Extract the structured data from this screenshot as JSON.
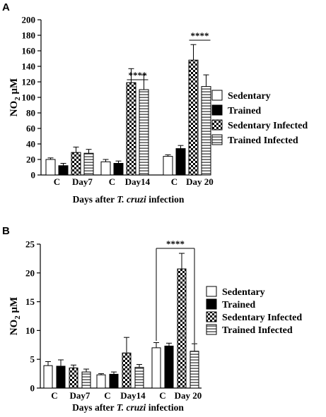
{
  "legend": [
    {
      "name": "Sedentary",
      "fill": "white"
    },
    {
      "name": "Trained",
      "fill": "black"
    },
    {
      "name": "Sedentary Infected",
      "fill": "checker"
    },
    {
      "name": "Trained Infected",
      "fill": "hstripe"
    }
  ],
  "chart_data": [
    {
      "type": "bar",
      "panel": "A",
      "ylabel_main": "NO",
      "ylabel_sub": "2",
      "ylabel_unit": " μM",
      "xlabel_pre": "Days after ",
      "xlabel_em": "T. cruzi",
      "xlabel_post": " infection",
      "ylim": [
        0,
        200
      ],
      "yticks": [
        0,
        20,
        40,
        60,
        80,
        100,
        120,
        140,
        160,
        180,
        200
      ],
      "groups": [
        {
          "label": "Day7",
          "control_label": "C",
          "bars": [
            {
              "series": "Sedentary",
              "value": 20,
              "err": 2
            },
            {
              "series": "Trained",
              "value": 12,
              "err": 3
            },
            {
              "series": "Sedentary Infected",
              "value": 29,
              "err": 7
            },
            {
              "series": "Trained Infected",
              "value": 28,
              "err": 5
            }
          ]
        },
        {
          "label": "Day14",
          "control_label": "C",
          "bars": [
            {
              "series": "Sedentary",
              "value": 17,
              "err": 3
            },
            {
              "series": "Trained",
              "value": 15,
              "err": 3
            },
            {
              "series": "Sedentary Infected",
              "value": 119,
              "err": 18
            },
            {
              "series": "Trained Infected",
              "value": 110,
              "err": 19
            }
          ]
        },
        {
          "label": "Day 20",
          "control_label": "C",
          "bars": [
            {
              "series": "Sedentary",
              "value": 24,
              "err": 2
            },
            {
              "series": "Trained",
              "value": 34,
              "err": 4
            },
            {
              "series": "Sedentary Infected",
              "value": 148,
              "err": 20
            },
            {
              "series": "Trained Infected",
              "value": 114,
              "err": 15
            }
          ]
        }
      ],
      "significance": [
        {
          "label": "****",
          "group": "Day14"
        },
        {
          "label": "****",
          "group": "Day 20"
        }
      ]
    },
    {
      "type": "bar",
      "panel": "B",
      "ylabel_main": "NO",
      "ylabel_sub": "2",
      "ylabel_unit": " μM",
      "xlabel_pre": "Days after ",
      "xlabel_em": "T. cruzi",
      "xlabel_post": " infection",
      "ylim": [
        0,
        25
      ],
      "yticks": [
        0,
        5,
        10,
        15,
        20,
        25
      ],
      "groups": [
        {
          "label": "Day7",
          "control_label": "C",
          "bars": [
            {
              "series": "Sedentary",
              "value": 3.9,
              "err": 0.7
            },
            {
              "series": "Trained",
              "value": 3.8,
              "err": 1.1
            },
            {
              "series": "Sedentary Infected",
              "value": 3.5,
              "err": 0.5
            },
            {
              "series": "Trained Infected",
              "value": 2.8,
              "err": 0.5
            }
          ]
        },
        {
          "label": "Day14",
          "control_label": "C",
          "bars": [
            {
              "series": "Sedentary",
              "value": 2.3,
              "err": 0.2
            },
            {
              "series": "Trained",
              "value": 2.4,
              "err": 0.4
            },
            {
              "series": "Sedentary Infected",
              "value": 6.1,
              "err": 2.7
            },
            {
              "series": "Trained Infected",
              "value": 3.6,
              "err": 0.5
            }
          ]
        },
        {
          "label": "Day 20",
          "control_label": "C",
          "bars": [
            {
              "series": "Sedentary",
              "value": 7.0,
              "err": 0.9
            },
            {
              "series": "Trained",
              "value": 7.3,
              "err": 0.5
            },
            {
              "series": "Sedentary Infected",
              "value": 20.7,
              "err": 2.7
            },
            {
              "series": "Trained Infected",
              "value": 6.4,
              "err": 1.3
            }
          ]
        }
      ],
      "significance": [
        {
          "label": "****",
          "group": "Day 20"
        }
      ]
    }
  ]
}
